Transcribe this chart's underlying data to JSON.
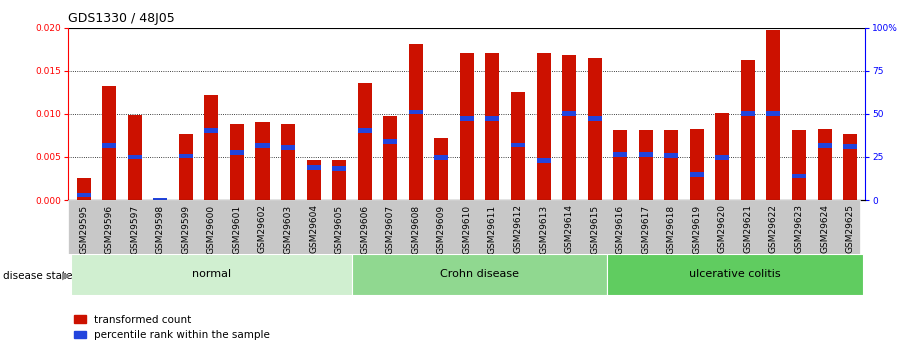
{
  "title": "GDS1330 / 48J05",
  "samples": [
    "GSM29595",
    "GSM29596",
    "GSM29597",
    "GSM29598",
    "GSM29599",
    "GSM29600",
    "GSM29601",
    "GSM29602",
    "GSM29603",
    "GSM29604",
    "GSM29605",
    "GSM29606",
    "GSM29607",
    "GSM29608",
    "GSM29609",
    "GSM29610",
    "GSM29611",
    "GSM29612",
    "GSM29613",
    "GSM29614",
    "GSM29615",
    "GSM29616",
    "GSM29617",
    "GSM29618",
    "GSM29619",
    "GSM29620",
    "GSM29621",
    "GSM29622",
    "GSM29623",
    "GSM29624",
    "GSM29625"
  ],
  "transformed_count": [
    0.0026,
    0.0132,
    0.0099,
    0.0,
    0.0077,
    0.0122,
    0.0088,
    0.009,
    0.0088,
    0.0047,
    0.0047,
    0.0136,
    0.0097,
    0.0181,
    0.0072,
    0.017,
    0.017,
    0.0125,
    0.017,
    0.0168,
    0.0165,
    0.0081,
    0.0081,
    0.0081,
    0.0083,
    0.0101,
    0.0163,
    0.0197,
    0.0081,
    0.0083,
    0.0077
  ],
  "percentile_rank_scaled": [
    0.0006,
    0.0063,
    0.005,
    0.0,
    0.0051,
    0.0081,
    0.0055,
    0.0063,
    0.0061,
    0.0038,
    0.0037,
    0.0081,
    0.0068,
    0.0102,
    0.0049,
    0.0095,
    0.0095,
    0.0064,
    0.0046,
    0.01,
    0.0095,
    0.0053,
    0.0053,
    0.0052,
    0.003,
    0.0049,
    0.01,
    0.01,
    0.0028,
    0.0063,
    0.0062
  ],
  "group_defs": [
    {
      "name": "normal",
      "start": 0,
      "end": 10,
      "color": "#d0efd0"
    },
    {
      "name": "Crohn disease",
      "start": 11,
      "end": 20,
      "color": "#90d890"
    },
    {
      "name": "ulcerative colitis",
      "start": 21,
      "end": 30,
      "color": "#60cc60"
    }
  ],
  "bar_color_red": "#cc1100",
  "bar_color_blue": "#2244dd",
  "ylim_left": [
    0,
    0.02
  ],
  "ylim_right": [
    0,
    100
  ],
  "yticks_left": [
    0,
    0.005,
    0.01,
    0.015,
    0.02
  ],
  "yticks_right": [
    0,
    25,
    50,
    75,
    100
  ],
  "bar_width": 0.55,
  "blue_bar_height": 0.00055,
  "title_fontsize": 9,
  "tick_fontsize": 6.5,
  "group_fontsize": 8,
  "legend_fontsize": 7.5
}
